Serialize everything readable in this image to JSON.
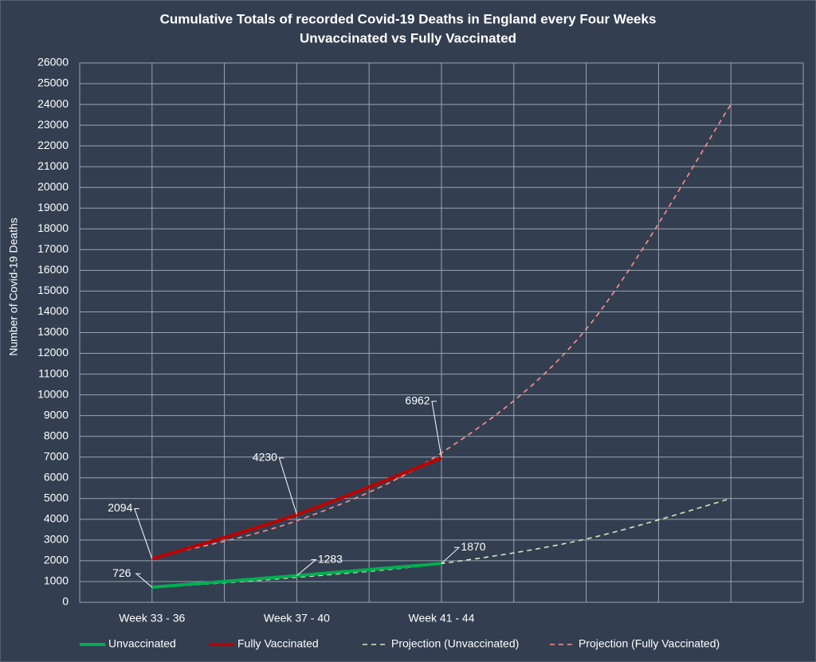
{
  "chart_data": {
    "type": "line",
    "title": "Cumulative Totals of recorded Covid-19 Deaths in England every Four Weeks",
    "subtitle": "Unvaccinated vs Fully Vaccinated",
    "y_label": "Number of Covid-19 Deaths",
    "categories": [
      "Week 33 - 36",
      "Week 37 - 40",
      "Week 41 - 44",
      null,
      null
    ],
    "series": [
      {
        "name": "Unvaccinated",
        "color": "#00b050",
        "values": [
          726,
          1283,
          1870,
          null,
          null
        ]
      },
      {
        "name": "Fully Vaccinated",
        "color": "#c00000",
        "values": [
          2094,
          4230,
          6962,
          null,
          null
        ]
      },
      {
        "name": "Projection (Unvaccinated)",
        "color": "#d8e6c0",
        "dashed": true,
        "values": [
          700,
          1200,
          1870,
          3050,
          5000
        ]
      },
      {
        "name": "Projection (Fully Vaccinated)",
        "color": "#ff8f8f",
        "dashed": true,
        "values": [
          2150,
          3930,
          7200,
          13170,
          24000
        ]
      }
    ],
    "ylim": [
      0,
      26000
    ],
    "yticks": [
      0,
      1000,
      2000,
      3000,
      4000,
      5000,
      6000,
      7000,
      8000,
      9000,
      10000,
      11000,
      12000,
      13000,
      14000,
      15000,
      16000,
      17000,
      18000,
      19000,
      20000,
      21000,
      22000,
      23000,
      24000,
      25000,
      26000
    ],
    "grid": true,
    "data_labels": [
      0,
      1
    ],
    "legend": "bottom"
  }
}
